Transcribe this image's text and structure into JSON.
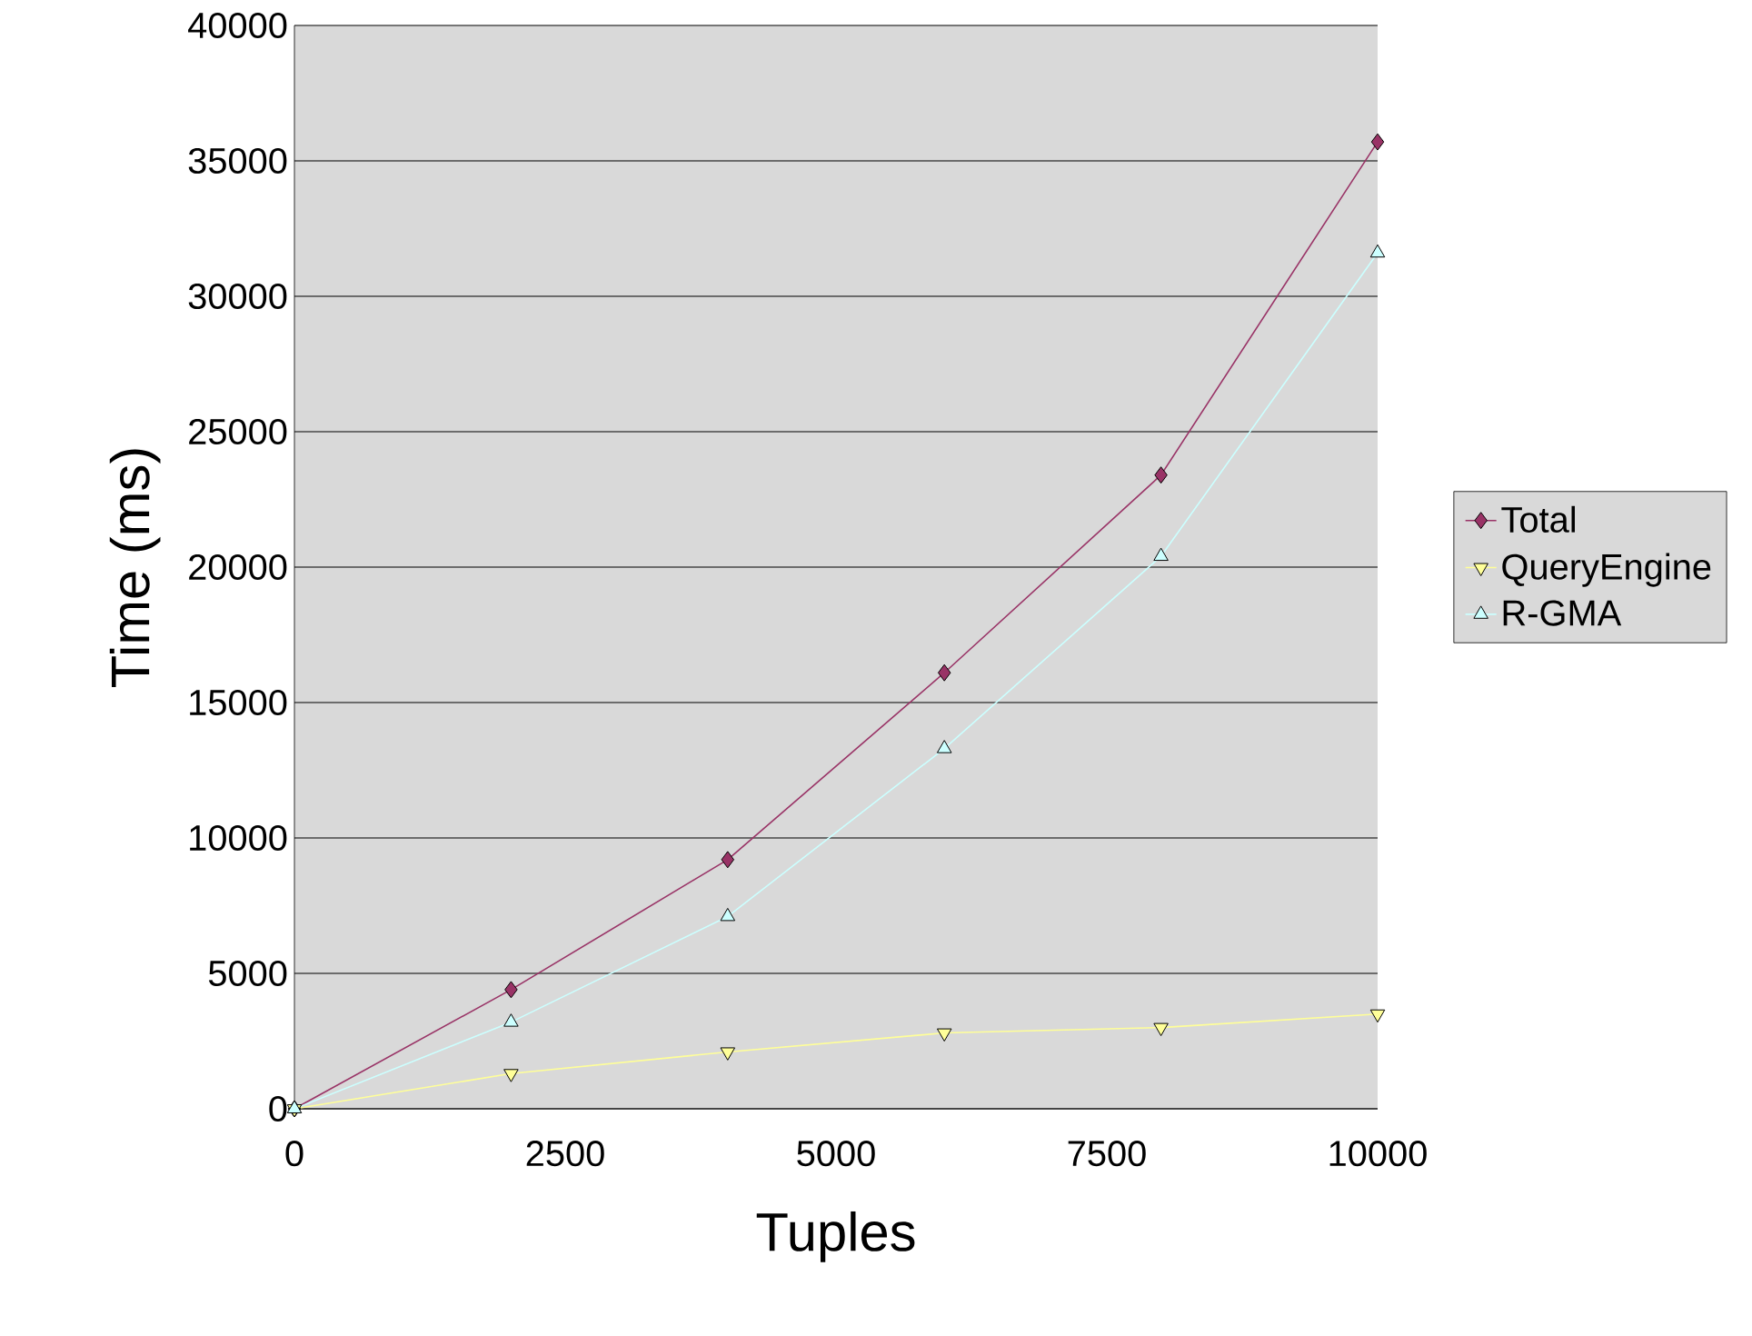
{
  "chart_data": {
    "type": "line",
    "xlabel": "Tuples",
    "ylabel": "Time (ms)",
    "x": [
      0,
      2000,
      4000,
      6000,
      8000,
      10000
    ],
    "series": [
      {
        "name": "Total",
        "color": "#993366",
        "marker": "diamond",
        "values": [
          0,
          4400,
          9200,
          16100,
          23400,
          35700
        ]
      },
      {
        "name": "QueryEngine",
        "color": "#ffff99",
        "marker": "triangle down",
        "values": [
          0,
          1300,
          2100,
          2800,
          3000,
          3500
        ]
      },
      {
        "name": "R-GMA",
        "color": "#ccffff",
        "marker": "triangle",
        "values": [
          0,
          3200,
          7100,
          13300,
          20400,
          31600
        ]
      }
    ],
    "xlim": [
      0,
      10000
    ],
    "ylim": [
      0,
      40000
    ],
    "xticks": [
      0,
      2500,
      5000,
      7500,
      10000
    ],
    "yticks": [
      0,
      5000,
      10000,
      15000,
      20000,
      25000,
      30000,
      35000,
      40000
    ],
    "grid": "y",
    "legend": "right"
  }
}
